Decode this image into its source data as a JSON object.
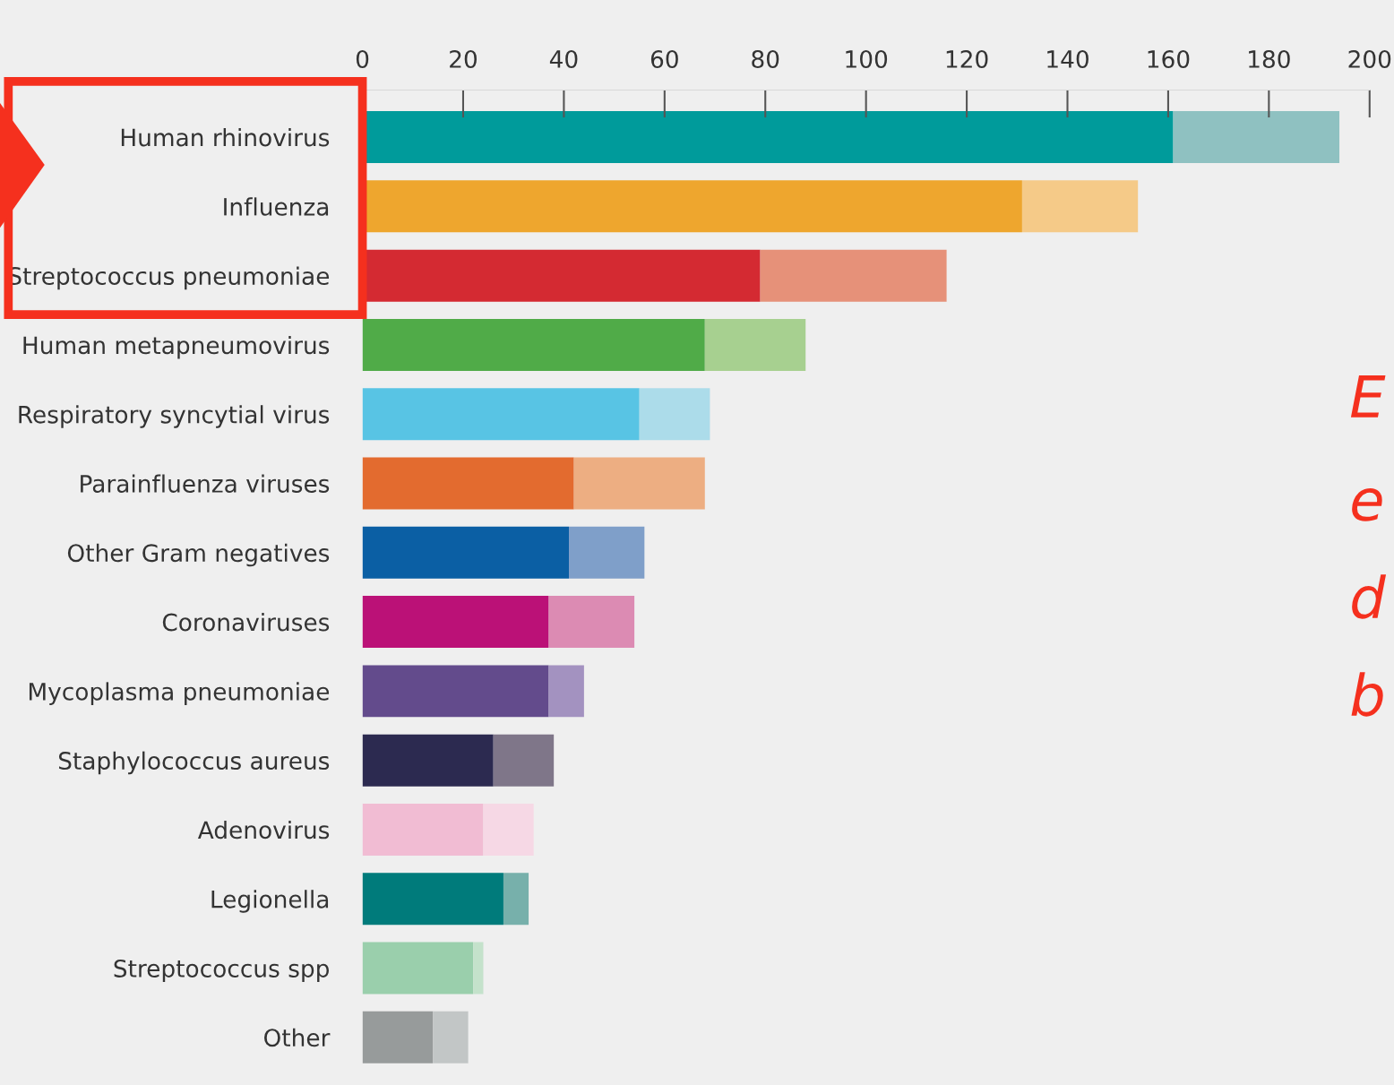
{
  "chart_data": {
    "type": "bar",
    "orientation": "horizontal",
    "stacked": true,
    "categories": [
      "Human rhinovirus",
      "Influenza",
      "Streptococcus pneumoniae",
      "Human metapneumovirus",
      "Respiratory syncytial virus",
      "Parainfluenza viruses",
      "Other Gram negatives",
      "Coronaviruses",
      "Mycoplasma pneumoniae",
      "Staphylococcus aureus",
      "Adenovirus",
      "Legionella",
      "Streptococcus spp",
      "Other"
    ],
    "series": [
      {
        "colors": [
          "#009b9b",
          "#eea62e",
          "#d42a32",
          "#50ab48",
          "#58c4e4",
          "#e36b2f",
          "#0b5fa4",
          "#bb1177",
          "#634b8c",
          "#2c2a50",
          "#f1bcd3",
          "#007b7b",
          "#9acfac",
          "#979b9b"
        ],
        "values": [
          161,
          131,
          79,
          68,
          55,
          42,
          41,
          37,
          37,
          26,
          24,
          28,
          22,
          14
        ]
      },
      {
        "colors": [
          "#8fc1c1",
          "#f5ca88",
          "#e69179",
          "#a7d090",
          "#acdcea",
          "#edae82",
          "#7f9fc9",
          "#dc8bb3",
          "#a392c0",
          "#7f7689",
          "#f6d8e5",
          "#77b0ab",
          "#c4e2cb",
          "#c2c6c6"
        ],
        "values": [
          33,
          23,
          37,
          20,
          14,
          26,
          15,
          17,
          7,
          12,
          10,
          5,
          2,
          7
        ]
      }
    ],
    "xlim": [
      0,
      200
    ],
    "xticks": [
      0,
      20,
      40,
      60,
      80,
      100,
      120,
      140,
      160,
      180,
      200
    ],
    "grid": false,
    "legend": false,
    "annotations": [
      "E",
      "e",
      "d",
      "b"
    ]
  }
}
